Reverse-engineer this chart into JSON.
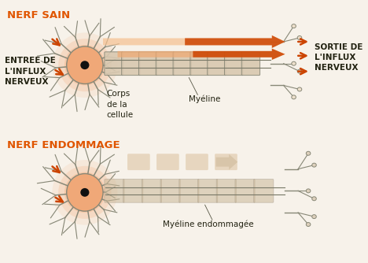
{
  "bg_color": "#f7f2ea",
  "title1": "NERF SAIN",
  "title2": "NERF ENDOMMAGE",
  "title_color": "#e05500",
  "label_entree": "ENTREE DE\nL'INFLUX\nNERVEUX",
  "label_sortie": "SORTIE DE\nL'INFLUX\nNERVEUX",
  "label_corps": "Corps\nde la\ncellule",
  "label_myeline": "Myéline",
  "label_myeline_end": "Myéline endommagée",
  "arrow_color": "#cc4400",
  "myelin_fill": "#d8c8b0",
  "myelin_edge": "#888877",
  "axon_line_color": "#777766",
  "cell_body_inner": "#f0a878",
  "cell_body_outer": "#f5c8a0",
  "cell_nucleus": "#111111",
  "dendrite_color": "#888877",
  "terminal_fill": "#ede0cc",
  "terminal_edge": "#888877",
  "text_color": "#222211",
  "label_fontsize": 7.5,
  "title_fontsize": 9.5
}
